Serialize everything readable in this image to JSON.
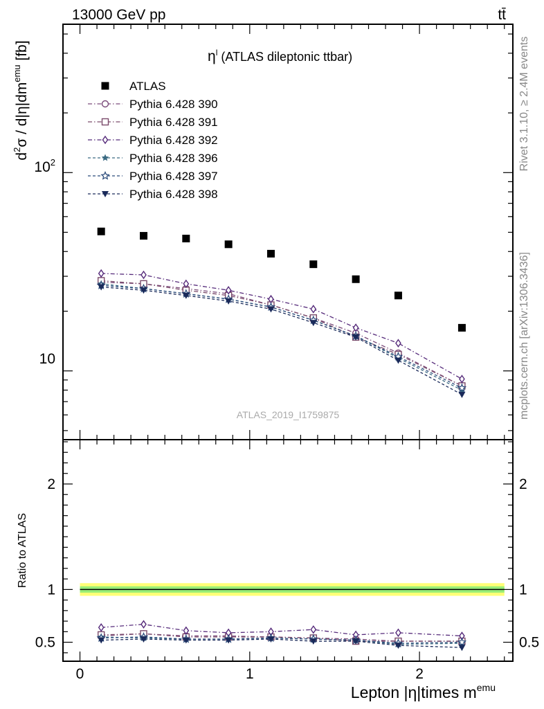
{
  "header": {
    "left": "13000 GeV pp",
    "right": "tt̄"
  },
  "side_labels": {
    "rivet": "Rivet 3.1.10, ≥ 2.4M events",
    "mcplots": "mcplots.cern.ch [arXiv:1306.3436]"
  },
  "watermark": "ATLAS_2019_I1759875",
  "colors": {
    "data": "#000000",
    "band_outer": "#ffff77",
    "band_inner": "#99ee77",
    "ratio_line": "#000000"
  },
  "chart_data": [
    {
      "type": "scatter",
      "panel": "main",
      "title": "η",
      "title_superscript": "l",
      "title_suffix": " (ATLAS dileptonic ttbar)",
      "ylabel_parts": [
        "d",
        "2",
        "σ / d|η|dm",
        "emu",
        " [fb]"
      ],
      "yscale": "log",
      "ylim": [
        4.5,
        560
      ],
      "xlim": [
        -0.1,
        2.55
      ],
      "yticks": [
        10,
        100
      ],
      "yticklabels": [
        "10",
        "10",
        "2"
      ],
      "x": [
        0.125,
        0.375,
        0.625,
        0.875,
        1.125,
        1.375,
        1.625,
        1.875,
        2.25
      ],
      "legend_position": "top-left",
      "series": [
        {
          "name": "ATLAS",
          "marker": "square-filled",
          "line": "none",
          "color": "#000000",
          "values": [
            50.5,
            48.0,
            46.5,
            43.5,
            39.0,
            34.5,
            29.0,
            24.0,
            16.5
          ]
        },
        {
          "name": "Pythia 6.428 390",
          "marker": "circle-open",
          "line": "dashdot",
          "color": "#7a4a7a",
          "values": [
            28.0,
            27.5,
            26.0,
            24.5,
            21.5,
            18.5,
            15.5,
            12.3,
            8.4
          ]
        },
        {
          "name": "Pythia 6.428 391",
          "marker": "square-open",
          "line": "dashdot",
          "color": "#7a4a6a",
          "values": [
            28.5,
            27.5,
            25.5,
            24.0,
            21.5,
            18.5,
            14.8,
            12.1,
            8.4
          ]
        },
        {
          "name": "Pythia 6.428 392",
          "marker": "diamond-open",
          "line": "dashdot",
          "color": "#552a7a",
          "values": [
            31.0,
            30.5,
            27.5,
            25.5,
            23.0,
            20.5,
            16.5,
            13.8,
            9.1
          ]
        },
        {
          "name": "Pythia 6.428 396",
          "marker": "star-filled",
          "line": "dashed",
          "color": "#3a6a82",
          "values": [
            27.5,
            26.0,
            24.5,
            23.0,
            21.0,
            18.0,
            15.0,
            11.6,
            8.0
          ]
        },
        {
          "name": "Pythia 6.428 397",
          "marker": "star-open",
          "line": "dashed",
          "color": "#2a4a7a",
          "values": [
            27.0,
            26.0,
            24.5,
            23.0,
            21.0,
            18.0,
            15.0,
            11.8,
            8.2
          ]
        },
        {
          "name": "Pythia 6.428 398",
          "marker": "triangle-down-filled",
          "line": "dashed",
          "color": "#1a2a5a",
          "values": [
            26.5,
            25.5,
            24.0,
            22.5,
            20.5,
            17.5,
            14.8,
            11.3,
            7.6
          ]
        }
      ]
    },
    {
      "type": "line",
      "panel": "ratio",
      "ylabel": "Ratio to ATLAS",
      "xlabel_parts": [
        "Lepton |η|times m",
        "emu"
      ],
      "ylim": [
        0.32,
        2.42
      ],
      "xlim": [
        -0.1,
        2.55
      ],
      "xticks": [
        0,
        1,
        2
      ],
      "xticklabels": [
        "0",
        "1",
        "2"
      ],
      "yticks": [
        0.5,
        1,
        2
      ],
      "yticklabels": [
        "0.5",
        "1",
        "2"
      ],
      "band": {
        "inner": [
          0.97,
          1.03
        ],
        "outer": [
          0.94,
          1.06
        ]
      },
      "x": [
        0.125,
        0.375,
        0.625,
        0.875,
        1.125,
        1.375,
        1.625,
        1.875,
        2.25
      ],
      "series": [
        {
          "name": "Pythia 6.428 390",
          "values": [
            0.56,
            0.58,
            0.56,
            0.56,
            0.55,
            0.54,
            0.53,
            0.51,
            0.51
          ]
        },
        {
          "name": "Pythia 6.428 391",
          "values": [
            0.57,
            0.58,
            0.55,
            0.55,
            0.55,
            0.54,
            0.51,
            0.51,
            0.51
          ]
        },
        {
          "name": "Pythia 6.428 392",
          "values": [
            0.64,
            0.67,
            0.61,
            0.59,
            0.6,
            0.62,
            0.57,
            0.59,
            0.56
          ]
        },
        {
          "name": "Pythia 6.428 396",
          "values": [
            0.55,
            0.54,
            0.53,
            0.53,
            0.54,
            0.53,
            0.52,
            0.48,
            0.49
          ]
        },
        {
          "name": "Pythia 6.428 397",
          "values": [
            0.54,
            0.55,
            0.53,
            0.53,
            0.54,
            0.53,
            0.52,
            0.49,
            0.5
          ]
        },
        {
          "name": "Pythia 6.428 398",
          "values": [
            0.52,
            0.53,
            0.52,
            0.52,
            0.53,
            0.51,
            0.51,
            0.47,
            0.45
          ]
        }
      ]
    }
  ]
}
